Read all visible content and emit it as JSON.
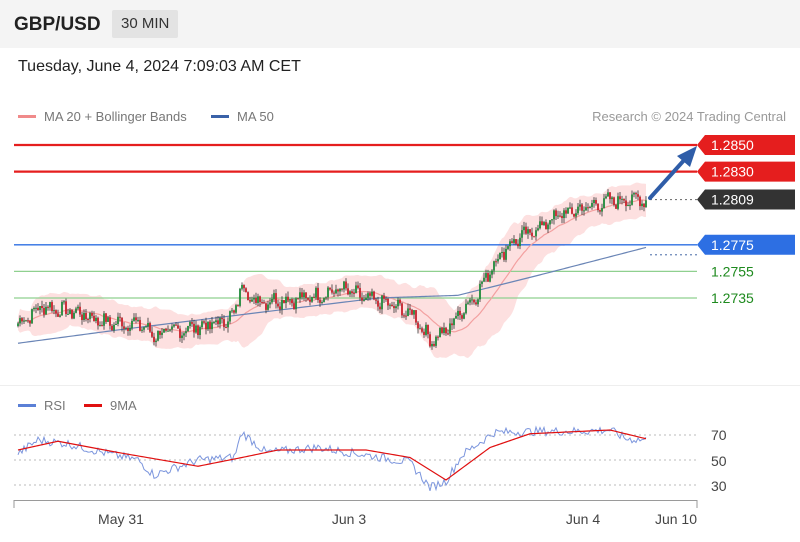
{
  "header": {
    "symbol": "GBP/USD",
    "timeframe": "30 MIN",
    "datetime": "Tuesday, June 4, 2024 7:09:03 AM CET"
  },
  "price_panel": {
    "legend": [
      {
        "label": "MA 20 + Bollinger Bands",
        "color": "#f08a8a"
      },
      {
        "label": "MA 50",
        "color": "#3a62a8"
      }
    ],
    "credit": "Research © 2024 Trading Central",
    "levels": [
      {
        "value": 1.285,
        "label": "1.2850",
        "type": "resistance",
        "color": "#e51e1e"
      },
      {
        "value": 1.283,
        "label": "1.2830",
        "type": "resistance",
        "color": "#e51e1e"
      },
      {
        "value": 1.2809,
        "label": "1.2809",
        "type": "last",
        "color": "#333333"
      },
      {
        "value": 1.2775,
        "label": "1.2775",
        "type": "pivot",
        "color": "#2d6fe3"
      },
      {
        "value": 1.2755,
        "label": "1.2755",
        "type": "support",
        "color": "#1e8a1e"
      },
      {
        "value": 1.2735,
        "label": "1.2735",
        "type": "support",
        "color": "#1e8a1e"
      }
    ]
  },
  "rsi_panel": {
    "legend": [
      {
        "label": "RSI",
        "color": "#5b80d6"
      },
      {
        "label": "9MA",
        "color": "#e01010"
      }
    ],
    "levels": [
      "70",
      "50",
      "30"
    ]
  },
  "x_axis": {
    "ticks": [
      "May 31",
      "Jun 3",
      "Jun 4",
      "Jun 10"
    ]
  },
  "chart_data": {
    "type": "candlestick",
    "title": "GBP/USD",
    "interval": "30 MIN",
    "y_range": [
      1.27,
      1.2862
    ],
    "close_anchors": [
      [
        0,
        1.2716
      ],
      [
        6,
        1.2722
      ],
      [
        12,
        1.2729
      ],
      [
        20,
        1.2726
      ],
      [
        30,
        1.2724
      ],
      [
        45,
        1.2716
      ],
      [
        60,
        1.2716
      ],
      [
        68,
        1.2707
      ],
      [
        84,
        1.2712
      ],
      [
        100,
        1.2716
      ],
      [
        108,
        1.2722
      ],
      [
        112,
        1.2747
      ],
      [
        116,
        1.2734
      ],
      [
        124,
        1.2733
      ],
      [
        132,
        1.2734
      ],
      [
        140,
        1.2734
      ],
      [
        150,
        1.2737
      ],
      [
        162,
        1.2742
      ],
      [
        174,
        1.2734
      ],
      [
        186,
        1.273
      ],
      [
        198,
        1.2722
      ],
      [
        206,
        1.2703
      ],
      [
        214,
        1.271
      ],
      [
        222,
        1.2726
      ],
      [
        230,
        1.2739
      ],
      [
        238,
        1.2762
      ],
      [
        246,
        1.2776
      ],
      [
        256,
        1.2784
      ],
      [
        270,
        1.2797
      ],
      [
        284,
        1.2803
      ],
      [
        296,
        1.2808
      ],
      [
        304,
        1.2809
      ],
      [
        314,
        1.2809
      ]
    ],
    "ma50_anchors": [
      [
        0,
        1.2701
      ],
      [
        50,
        1.2711
      ],
      [
        120,
        1.2724
      ],
      [
        180,
        1.2735
      ],
      [
        220,
        1.2737
      ],
      [
        260,
        1.2752
      ],
      [
        314,
        1.2773
      ]
    ],
    "rsi_anchors": [
      [
        0,
        55
      ],
      [
        10,
        66
      ],
      [
        25,
        63
      ],
      [
        45,
        55
      ],
      [
        60,
        50
      ],
      [
        68,
        38
      ],
      [
        90,
        50
      ],
      [
        108,
        52
      ],
      [
        112,
        72
      ],
      [
        124,
        56
      ],
      [
        150,
        60
      ],
      [
        174,
        54
      ],
      [
        196,
        48
      ],
      [
        206,
        28
      ],
      [
        214,
        33
      ],
      [
        222,
        54
      ],
      [
        238,
        72
      ],
      [
        262,
        73
      ],
      [
        280,
        73
      ],
      [
        296,
        74
      ],
      [
        304,
        67
      ],
      [
        314,
        66
      ]
    ],
    "rsi_ma_anchors": [
      [
        0,
        58
      ],
      [
        20,
        65
      ],
      [
        50,
        56
      ],
      [
        90,
        45
      ],
      [
        112,
        52
      ],
      [
        130,
        58
      ],
      [
        174,
        58
      ],
      [
        196,
        52
      ],
      [
        214,
        34
      ],
      [
        236,
        60
      ],
      [
        256,
        71
      ],
      [
        296,
        74
      ],
      [
        314,
        67
      ]
    ],
    "rsi_range": [
      20,
      80
    ]
  }
}
